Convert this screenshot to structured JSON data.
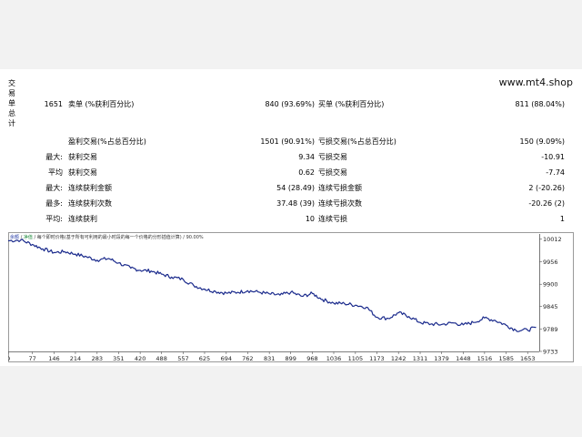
{
  "watermark": "www.mt4.shop",
  "side_label": [
    "交",
    "易",
    "单",
    "总",
    "计"
  ],
  "summary": {
    "total_trades": "1651",
    "short_label": "卖单 (%获利百分比)",
    "short_value": "840 (93.69%)",
    "long_label": "买单 (%获利百分比)",
    "long_value": "811 (88.04%)"
  },
  "stats_rows": [
    {
      "prefix": "",
      "left_label": "盈利交易(%占总百分比)",
      "left_value": "1501 (90.91%)",
      "right_label": "亏损交易(%占总百分比)",
      "right_value": "150 (9.09%)"
    },
    {
      "prefix": "最大:",
      "left_label": "获利交易",
      "left_value": "9.34",
      "right_label": "亏损交易",
      "right_value": "-10.91"
    },
    {
      "prefix": "平均",
      "left_label": "获利交易",
      "left_value": "0.62",
      "right_label": "亏损交易",
      "right_value": "-7.74"
    },
    {
      "prefix": "最大:",
      "left_label": "连续获利金额",
      "left_value": "54 (28.49)",
      "right_label": "连续亏损金额",
      "right_value": "2 (-20.26)"
    },
    {
      "prefix": "最多:",
      "left_label": "连续获利次数",
      "left_value": "37.48 (39)",
      "right_label": "连续亏损次数",
      "right_value": "-20.26 (2)"
    },
    {
      "prefix": "平均:",
      "left_label": "连续获利",
      "left_value": "10",
      "right_label": "连续亏损",
      "right_value": "1"
    }
  ],
  "chart_header": {
    "legend_balance": "余额",
    "separator1": "/",
    "legend_equity": "净值",
    "separator2": "/",
    "description": "每个即时价格(基于所有可利用的最小时段的每一个价格的分形插值计算)",
    "separator3": "/",
    "quality": "90.00%"
  },
  "chart_data": {
    "type": "line",
    "series": [
      {
        "color": "#1a2a8c",
        "x": [
          0,
          40,
          77,
          110,
          146,
          180,
          214,
          250,
          283,
          320,
          351,
          390,
          420,
          455,
          488,
          520,
          557,
          590,
          625,
          660,
          694,
          730,
          762,
          800,
          831,
          865,
          899,
          935,
          968,
          1000,
          1036,
          1070,
          1105,
          1140,
          1173,
          1210,
          1242,
          1275,
          1311,
          1345,
          1379,
          1415,
          1448,
          1480,
          1516,
          1550,
          1585,
          1615,
          1653,
          1680
        ],
        "y": [
          10008,
          10010,
          9999,
          9988,
          9979,
          9981,
          9975,
          9968,
          9960,
          9964,
          9953,
          9940,
          9935,
          9933,
          9925,
          9918,
          9912,
          9897,
          9888,
          9882,
          9878,
          9880,
          9884,
          9880,
          9876,
          9873,
          9880,
          9870,
          9877,
          9862,
          9853,
          9852,
          9848,
          9843,
          9818,
          9815,
          9829,
          9820,
          9805,
          9801,
          9800,
          9804,
          9799,
          9805,
          9816,
          9810,
          9798,
          9786,
          9786,
          9793
        ]
      }
    ],
    "xticks": [
      0,
      77,
      146,
      214,
      283,
      351,
      420,
      488,
      557,
      625,
      694,
      762,
      831,
      899,
      968,
      1036,
      1105,
      1173,
      1242,
      1311,
      1379,
      1448,
      1516,
      1585,
      1653
    ],
    "yticks": [
      10012,
      9956,
      9900,
      9845,
      9789,
      9733
    ],
    "xlim": [
      0,
      1690
    ],
    "ylim": [
      9733,
      10025
    ],
    "grid": false
  }
}
